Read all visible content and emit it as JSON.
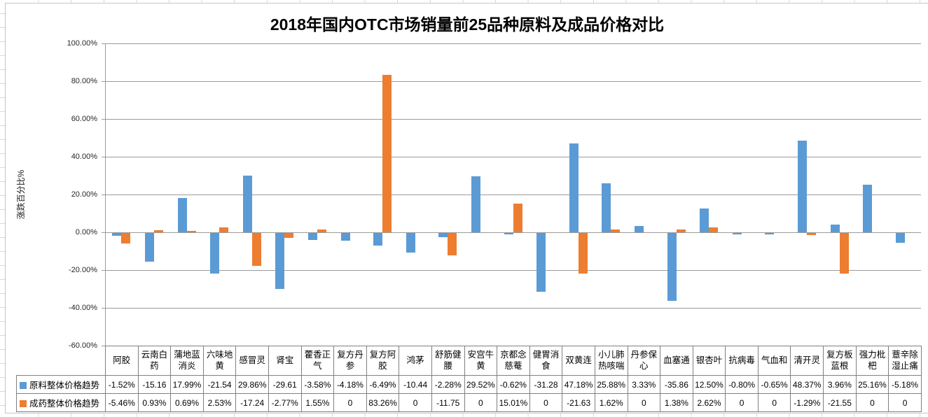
{
  "chart": {
    "title": "2018年国内OTC市场销量前25品种原料及成品价格对比",
    "y_axis_title": "涨跌百分比%"
  },
  "chart_data": {
    "type": "bar",
    "title": "2018年国内OTC市场销量前25品种原料及成品价格对比",
    "xlabel": "",
    "ylabel": "涨跌百分比%",
    "ylim": [
      -60,
      100
    ],
    "ytick_step": 20,
    "ytick_labels": [
      "100.00%",
      "80.00%",
      "60.00%",
      "40.00%",
      "20.00%",
      "0.00%",
      "-20.00%",
      "-40.00%",
      "-60.00%"
    ],
    "grid": true,
    "legend_position": "left-of-data-table",
    "categories": [
      "阿胶",
      "云南白药",
      "蒲地蓝消炎",
      "六味地黄",
      "感冒灵",
      "肾宝",
      "藿香正气",
      "复方丹参",
      "复方阿胶",
      "鸿茅",
      "舒筋健腰",
      "安宫牛黄",
      "京都念慈菴",
      "健胃消食",
      "双黄连",
      "小儿肺热咳喘",
      "丹参保心",
      "血塞通",
      "银杏叶",
      "抗病毒",
      "气血和",
      "清开灵",
      "复方板蓝根",
      "强力枇杷",
      "薏辛除湿止痛"
    ],
    "series": [
      {
        "name": "原料整体价格趋势",
        "color": "#5B9BD5",
        "values": [
          -1.52,
          -15.16,
          17.99,
          -21.54,
          29.86,
          -29.61,
          -3.58,
          -4.18,
          -6.49,
          -10.44,
          -2.28,
          29.52,
          -0.62,
          -31.28,
          47.18,
          25.88,
          3.33,
          -35.86,
          12.5,
          -0.8,
          -0.65,
          48.37,
          3.96,
          25.16,
          -5.18
        ],
        "display": [
          "-1.52%",
          "-15.16",
          "17.99%",
          "-21.54",
          "29.86%",
          "-29.61",
          "-3.58%",
          "-4.18%",
          "-6.49%",
          "-10.44",
          "-2.28%",
          "29.52%",
          "-0.62%",
          "-31.28",
          "47.18%",
          "25.88%",
          "3.33%",
          "-35.86",
          "12.50%",
          "-0.80%",
          "-0.65%",
          "48.37%",
          "3.96%",
          "25.16%",
          "-5.18%"
        ]
      },
      {
        "name": "成药整体价格趋势",
        "color": "#ED7D31",
        "values": [
          -5.46,
          0.93,
          0.69,
          2.53,
          -17.24,
          -2.77,
          1.55,
          0,
          83.26,
          0,
          -11.75,
          0,
          15.01,
          0,
          -21.63,
          1.62,
          0,
          1.38,
          2.62,
          0,
          0,
          -1.29,
          -21.55,
          0,
          0
        ],
        "display": [
          "-5.46%",
          "0.93%",
          "0.69%",
          "2.53%",
          "-17.24",
          "-2.77%",
          "1.55%",
          "0",
          "83.26%",
          "0",
          "-11.75",
          "0",
          "15.01%",
          "0",
          "-21.63",
          "1.62%",
          "0",
          "1.38%",
          "2.62%",
          "0",
          "0",
          "-1.29%",
          "-21.55",
          "0",
          "0"
        ]
      }
    ]
  },
  "colors": {
    "series_blue": "#5B9BD5",
    "series_orange": "#ED7D31",
    "plot_gridline": "#9B9B9B",
    "table_border": "#808080",
    "chart_border": "#C6C6C6"
  }
}
